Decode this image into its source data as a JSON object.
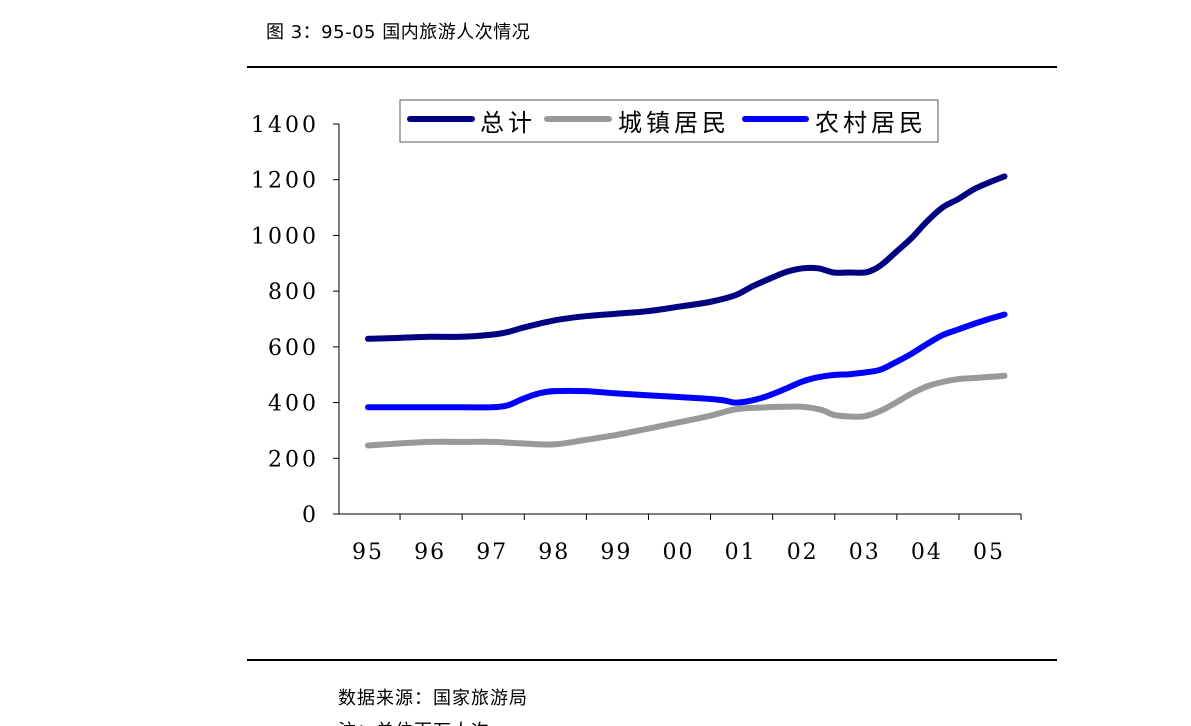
{
  "figure": {
    "title": "图 3：95-05 国内旅游人次情况",
    "source": "数据来源：国家旅游局",
    "note": "注：单位百万人次"
  },
  "chart_data": {
    "type": "line",
    "title": "",
    "xlabel": "",
    "ylabel": "",
    "categories": [
      "95",
      "96",
      "97",
      "98",
      "99",
      "00",
      "01",
      "02",
      "03",
      "04",
      "05"
    ],
    "x": [
      1995,
      1996,
      1997,
      1998,
      1999,
      2000,
      2001,
      2002,
      2003,
      2004,
      2005
    ],
    "ylim": [
      0,
      1400
    ],
    "yticks": [
      0,
      200,
      400,
      600,
      800,
      1000,
      1200,
      1400
    ],
    "ytick_labels": [
      "0",
      "200",
      "400",
      "600",
      "800",
      "1000",
      "1200",
      "1400"
    ],
    "grid": false,
    "legend_position": "top-center",
    "series": [
      {
        "name": "总计",
        "color": "#000080",
        "points": [
          [
            1995,
            629
          ],
          [
            1995.5,
            632
          ],
          [
            1996,
            636
          ],
          [
            1996.5,
            636
          ],
          [
            1997,
            644
          ],
          [
            1997.25,
            653
          ],
          [
            1997.5,
            669
          ],
          [
            1998,
            695
          ],
          [
            1998.5,
            710
          ],
          [
            1999,
            719
          ],
          [
            1999.5,
            728
          ],
          [
            2000,
            744
          ],
          [
            2000.5,
            761
          ],
          [
            2000.9,
            784
          ],
          [
            2001.2,
            818
          ],
          [
            2001.5,
            848
          ],
          [
            2001.75,
            870
          ],
          [
            2002,
            882
          ],
          [
            2002.25,
            882
          ],
          [
            2002.5,
            867
          ],
          [
            2002.75,
            867
          ],
          [
            2003,
            867
          ],
          [
            2003.15,
            878
          ],
          [
            2003.3,
            900
          ],
          [
            2003.5,
            940
          ],
          [
            2003.75,
            990
          ],
          [
            2004,
            1050
          ],
          [
            2004.25,
            1100
          ],
          [
            2004.5,
            1130
          ],
          [
            2004.75,
            1165
          ],
          [
            2005,
            1190
          ],
          [
            2005.25,
            1212
          ]
        ]
      },
      {
        "name": "城镇居民",
        "color": "#999999",
        "points": [
          [
            1995,
            246
          ],
          [
            1995.5,
            253
          ],
          [
            1996,
            259
          ],
          [
            1996.5,
            259
          ],
          [
            1997,
            259
          ],
          [
            1997.5,
            253
          ],
          [
            1998,
            250
          ],
          [
            1998.5,
            266
          ],
          [
            1999,
            284
          ],
          [
            1999.5,
            306
          ],
          [
            2000,
            329
          ],
          [
            2000.5,
            352
          ],
          [
            2000.9,
            375
          ],
          [
            2001.3,
            382
          ],
          [
            2001.75,
            385
          ],
          [
            2002,
            385
          ],
          [
            2002.3,
            374
          ],
          [
            2002.5,
            356
          ],
          [
            2002.75,
            350
          ],
          [
            2003,
            351
          ],
          [
            2003.25,
            370
          ],
          [
            2003.5,
            400
          ],
          [
            2003.75,
            432
          ],
          [
            2004,
            458
          ],
          [
            2004.25,
            474
          ],
          [
            2004.5,
            484
          ],
          [
            2004.75,
            488
          ],
          [
            2005,
            492
          ],
          [
            2005.25,
            496
          ]
        ]
      },
      {
        "name": "农村居民",
        "color": "#0000ff",
        "points": [
          [
            1995,
            383
          ],
          [
            1995.5,
            383
          ],
          [
            1996,
            383
          ],
          [
            1996.5,
            383
          ],
          [
            1997,
            383
          ],
          [
            1997.25,
            390
          ],
          [
            1997.5,
            414
          ],
          [
            1997.75,
            433
          ],
          [
            1998,
            441
          ],
          [
            1998.5,
            441
          ],
          [
            1999,
            433
          ],
          [
            1999.5,
            426
          ],
          [
            2000,
            420
          ],
          [
            2000.5,
            413
          ],
          [
            2000.75,
            407
          ],
          [
            2000.9,
            400
          ],
          [
            2001.1,
            404
          ],
          [
            2001.4,
            421
          ],
          [
            2001.75,
            452
          ],
          [
            2002,
            476
          ],
          [
            2002.25,
            491
          ],
          [
            2002.5,
            499
          ],
          [
            2002.75,
            502
          ],
          [
            2003,
            508
          ],
          [
            2003.25,
            518
          ],
          [
            2003.5,
            545
          ],
          [
            2003.75,
            575
          ],
          [
            2004,
            610
          ],
          [
            2004.25,
            642
          ],
          [
            2004.5,
            662
          ],
          [
            2004.75,
            682
          ],
          [
            2005,
            700
          ],
          [
            2005.25,
            716
          ]
        ]
      }
    ]
  }
}
